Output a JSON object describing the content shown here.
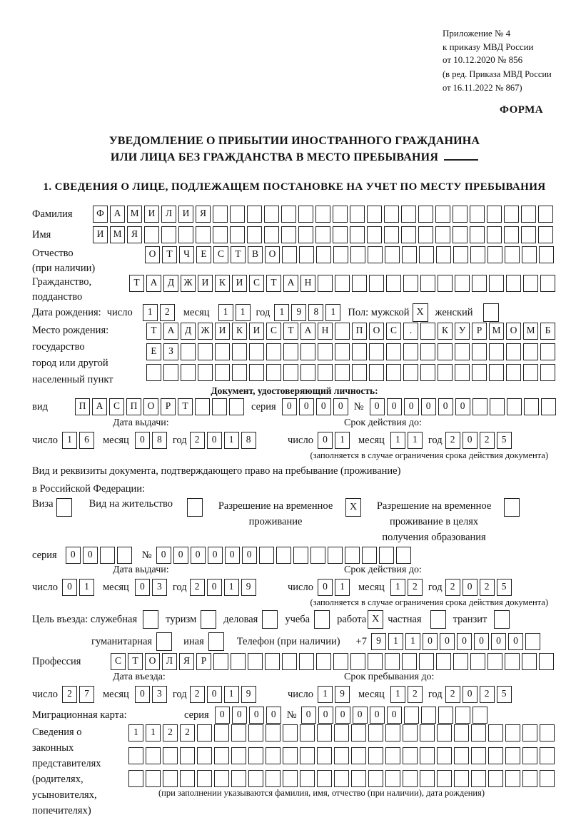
{
  "header": {
    "ref_lines": [
      "Приложение № 4",
      "к приказу МВД России",
      "от 10.12.2020 № 856"
    ],
    "amend_lines": [
      "(в ред. Приказа МВД России",
      "от 16.11.2022 № 867)"
    ],
    "forma": "ФОРМА"
  },
  "title": {
    "line1": "УВЕДОМЛЕНИЕ О ПРИБЫТИИ ИНОСТРАННОГО ГРАЖДАНИНА",
    "line2": "ИЛИ ЛИЦА БЕЗ ГРАЖДАНСТВА В МЕСТО ПРЕБЫВАНИЯ"
  },
  "section1_heading": "1. СВЕДЕНИЯ О ЛИЦЕ, ПОДЛЕЖАЩЕМ ПОСТАНОВКЕ НА УЧЕТ ПО МЕСТУ ПРЕБЫВАНИЯ",
  "labels": {
    "surname": "Фамилия",
    "given_name": "Имя",
    "patronymic": "Отчество",
    "patronymic_note": "(при наличии)",
    "citizenship1": "Гражданство,",
    "citizenship2": "подданство",
    "birth_date": "Дата рождения:",
    "day": "число",
    "month": "месяц",
    "year": "год",
    "sex_male": "Пол: мужской",
    "sex_female": "женский",
    "birth_place": "Место рождения:",
    "state": "государство",
    "city1": "город или другой",
    "city2": "населенный пункт",
    "identity_doc": "Документ, удостоверяющий личность:",
    "doc_kind": "вид",
    "series": "серия",
    "number_sign": "№",
    "issue_date": "Дата выдачи:",
    "valid_until": "Срок действия до:",
    "validity_note": "(заполняется в случае ограничения срока действия документа)",
    "residence_doc1": "Вид и реквизиты документа, подтверждающего право на пребывание (проживание)",
    "residence_doc2": "в Российской Федерации:",
    "visa": "Виза",
    "residence_permit": "Вид на жительство",
    "temp_permit1": "Разрешение на временное",
    "temp_permit2": "проживание",
    "temp_permit_edu1": "Разрешение на временное",
    "temp_permit_edu2": "проживание в целях",
    "temp_permit_edu3": "получения образования",
    "purpose": "Цель въезда: служебная",
    "tourism": "туризм",
    "business": "деловая",
    "study": "учеба",
    "work": "работа",
    "private": "частная",
    "transit": "транзит",
    "humanitarian": "гуманитарная",
    "other": "иная",
    "phone": "Телефон (при наличии)",
    "phone_prefix": "+7",
    "profession": "Профессия",
    "entry_date": "Дата въезда:",
    "stay_until": "Срок пребывания до:",
    "migration_card": "Миграционная карта:",
    "representatives": [
      "Сведения о",
      "законных",
      "представителях",
      "(родителях,",
      "усыновителях,",
      "попечителях)"
    ],
    "representatives_note": "(при заполнении указываются фамилия, имя, отчество (при наличии), дата рождения)"
  },
  "fields": {
    "surname": {
      "value": "ФАМИЛИЯ",
      "len": 27
    },
    "given_name": {
      "value": "ИМЯ",
      "len": 27
    },
    "patronymic": {
      "value": "ОТЧЕСТВО",
      "len": 24
    },
    "citizenship": {
      "value": "ТАДЖИКИСТАН",
      "len": 25
    },
    "birth_day": {
      "value": "12",
      "len": 2
    },
    "birth_month": {
      "value": "11",
      "len": 2
    },
    "birth_year": {
      "value": "1981",
      "len": 4
    },
    "birth_place_row1": {
      "value": "ТАДЖИКИСТАН ПОС. КУРМОМБ",
      "len": 24
    },
    "birth_place_row2": {
      "value": "ЕЗ",
      "len": 24
    },
    "birth_place_row3": {
      "value": "",
      "len": 24
    },
    "doc_kind": {
      "value": "ПАСПОРТ",
      "len": 10
    },
    "doc_series": {
      "value": "0000",
      "len": 4
    },
    "doc_number": {
      "value": "000000",
      "len": 11
    },
    "doc_issue_day": {
      "value": "16",
      "len": 2
    },
    "doc_issue_month": {
      "value": "08",
      "len": 2
    },
    "doc_issue_year": {
      "value": "2018",
      "len": 4
    },
    "doc_valid_day": {
      "value": "01",
      "len": 2
    },
    "doc_valid_month": {
      "value": "11",
      "len": 2
    },
    "doc_valid_year": {
      "value": "2025",
      "len": 4
    },
    "permit_series": {
      "value": "00",
      "len": 4
    },
    "permit_number": {
      "value": "000000",
      "len": 15
    },
    "permit_issue_day": {
      "value": "01",
      "len": 2
    },
    "permit_issue_month": {
      "value": "03",
      "len": 2
    },
    "permit_issue_year": {
      "value": "2019",
      "len": 4
    },
    "permit_valid_day": {
      "value": "01",
      "len": 2
    },
    "permit_valid_month": {
      "value": "12",
      "len": 2
    },
    "permit_valid_year": {
      "value": "2025",
      "len": 4
    },
    "phone_number": {
      "value": "911000000",
      "len": 10
    },
    "profession": {
      "value": "СТОЛЯР",
      "len": 26
    },
    "entry_day": {
      "value": "27",
      "len": 2
    },
    "entry_month": {
      "value": "03",
      "len": 2
    },
    "entry_year": {
      "value": "2019",
      "len": 4
    },
    "stay_day": {
      "value": "19",
      "len": 2
    },
    "stay_month": {
      "value": "12",
      "len": 2
    },
    "stay_year": {
      "value": "2025",
      "len": 4
    },
    "migr_series": {
      "value": "0000",
      "len": 4
    },
    "migr_number": {
      "value": "000000",
      "len": 11
    },
    "repr_row1": {
      "value": "1122",
      "len": 25
    },
    "repr_row2": {
      "value": "",
      "len": 25
    },
    "repr_row3": {
      "value": "",
      "len": 25
    }
  },
  "checkboxes": {
    "male": "X",
    "female": "",
    "visa": "",
    "residence_permit": "",
    "temp_permit": "X",
    "temp_permit_edu": "",
    "tourism": "",
    "business": "",
    "study": "",
    "work": "X",
    "private": "",
    "transit": "",
    "official": "",
    "humanitarian": "",
    "other": ""
  },
  "colors": {
    "ink": "#111111",
    "paper": "#ffffff"
  }
}
